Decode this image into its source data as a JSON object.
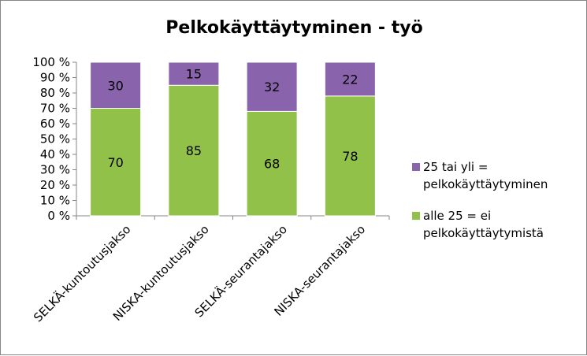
{
  "chart_data": {
    "type": "bar",
    "stacked": true,
    "title": "Pelkokäyttäytyminen - työ",
    "categories": [
      "SELKÄ-kuntoutusjakso",
      "NISKA-kuntoutusjakso",
      "SELKÄ-seurantajakso",
      "NISKA-seurantajakso"
    ],
    "series": [
      {
        "name": "alle 25 = ei pelkokäyttäytymistä",
        "values": [
          70,
          85,
          68,
          78
        ],
        "color": "#92c14a"
      },
      {
        "name": "25 tai yli = pelkokäyttäytyminen",
        "values": [
          30,
          15,
          32,
          22
        ],
        "color": "#8a63ad"
      }
    ],
    "yticks": [
      "0 %",
      "10 %",
      "20 %",
      "30 %",
      "40 %",
      "50 %",
      "60 %",
      "70 %",
      "80 %",
      "90 %",
      "100 %"
    ],
    "ylim": [
      0,
      100
    ],
    "legend_position": "right",
    "grid": false
  },
  "legend": [
    {
      "lines": [
        "25 tai yli =",
        "pelkokäyttäytyminen"
      ],
      "color": "#8a63ad"
    },
    {
      "lines": [
        "alle 25 = ei",
        "pelkokäyttäytymistä"
      ],
      "color": "#92c14a"
    }
  ]
}
